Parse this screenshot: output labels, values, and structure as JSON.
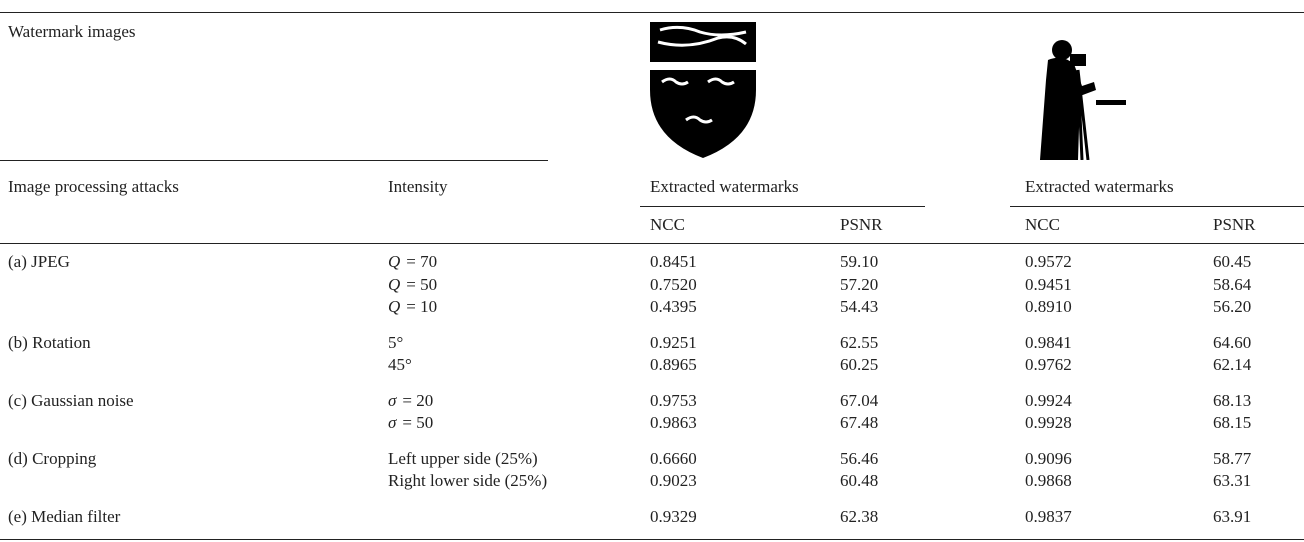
{
  "header": {
    "watermark_images": "Watermark images",
    "attacks": "Image processing attacks",
    "intensity": "Intensity",
    "extracted": [
      "Extracted watermarks",
      "Extracted watermarks"
    ],
    "metrics": [
      "NCC",
      "PSNR",
      "NCC",
      "PSNR"
    ]
  },
  "groups": [
    {
      "attack": "(a) JPEG",
      "rows": [
        {
          "intensity": {
            "symbol": "Q",
            "text": "= 70"
          },
          "values": [
            "0.8451",
            "59.10",
            "0.9572",
            "60.45"
          ]
        },
        {
          "intensity": {
            "symbol": "Q",
            "text": "= 50"
          },
          "values": [
            "0.7520",
            "57.20",
            "0.9451",
            "58.64"
          ]
        },
        {
          "intensity": {
            "symbol": "Q",
            "text": "= 10"
          },
          "values": [
            "0.4395",
            "54.43",
            "0.8910",
            "56.20"
          ]
        }
      ]
    },
    {
      "attack": "(b) Rotation",
      "rows": [
        {
          "intensity": {
            "text": "5°"
          },
          "values": [
            "0.9251",
            "62.55",
            "0.9841",
            "64.60"
          ]
        },
        {
          "intensity": {
            "text": "45°"
          },
          "values": [
            "0.8965",
            "60.25",
            "0.9762",
            "62.14"
          ]
        }
      ]
    },
    {
      "attack": "(c) Gaussian noise",
      "rows": [
        {
          "intensity": {
            "symbol": "σ",
            "text": "= 20"
          },
          "values": [
            "0.9753",
            "67.04",
            "0.9924",
            "68.13"
          ]
        },
        {
          "intensity": {
            "symbol": "σ",
            "text": "= 50"
          },
          "values": [
            "0.9863",
            "67.48",
            "0.9928",
            "68.15"
          ]
        }
      ]
    },
    {
      "attack": "(d) Cropping",
      "rows": [
        {
          "intensity": {
            "text": "Left upper side (25%)"
          },
          "values": [
            "0.6660",
            "56.46",
            "0.9096",
            "58.77"
          ]
        },
        {
          "intensity": {
            "text": "Right lower side (25%)"
          },
          "values": [
            "0.9023",
            "60.48",
            "0.9868",
            "63.31"
          ]
        }
      ]
    },
    {
      "attack": "(e) Median filter",
      "rows": [
        {
          "values": [
            "0.9329",
            "62.38",
            "0.9837",
            "63.91"
          ]
        }
      ]
    }
  ]
}
